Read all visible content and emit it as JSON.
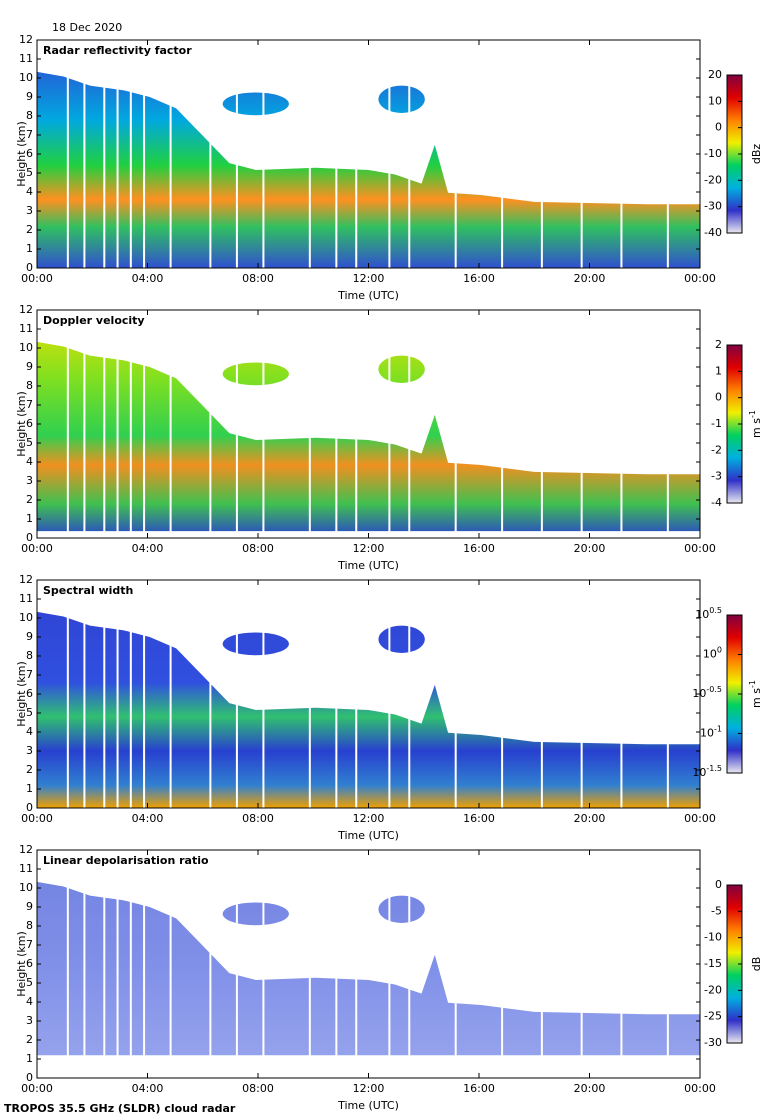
{
  "header": {
    "date": "18 Dec 2020"
  },
  "footer": {
    "text": "TROPOS 35.5 GHz (SLDR) cloud radar"
  },
  "chart_data": [
    {
      "type": "heatmap",
      "title": "Radar reflectivity factor",
      "xlabel": "Time (UTC)",
      "ylabel": "Height (km)",
      "xlim": [
        0,
        24
      ],
      "xticks": [
        {
          "value": 0,
          "label": "00:00"
        },
        {
          "value": 4,
          "label": "04:00"
        },
        {
          "value": 8,
          "label": "08:00"
        },
        {
          "value": 12,
          "label": "12:00"
        },
        {
          "value": 16,
          "label": "16:00"
        },
        {
          "value": 20,
          "label": "20:00"
        },
        {
          "value": 24,
          "label": "00:00"
        }
      ],
      "ylim": [
        0,
        12
      ],
      "yticks": [
        0,
        1,
        2,
        3,
        4,
        5,
        6,
        7,
        8,
        9,
        10,
        11,
        12
      ],
      "colorbar_label": "dBz",
      "clim": [
        -40,
        20
      ],
      "cticks": [
        -40,
        -30,
        -20,
        -10,
        0,
        10,
        20
      ],
      "colormap": [
        "#e8e8f0",
        "#3030c8",
        "#00b0e0",
        "#00d060",
        "#f0f000",
        "#ff8000",
        "#e00000",
        "#800040"
      ]
    },
    {
      "type": "heatmap",
      "title": "Doppler velocity",
      "xlabel": "Time (UTC)",
      "ylabel": "Height (km)",
      "xlim": [
        0,
        24
      ],
      "xticks": [
        {
          "value": 0,
          "label": "00:00"
        },
        {
          "value": 4,
          "label": "04:00"
        },
        {
          "value": 8,
          "label": "08:00"
        },
        {
          "value": 12,
          "label": "12:00"
        },
        {
          "value": 16,
          "label": "16:00"
        },
        {
          "value": 20,
          "label": "20:00"
        },
        {
          "value": 24,
          "label": "00:00"
        }
      ],
      "ylim": [
        0,
        12
      ],
      "yticks": [
        0,
        1,
        2,
        3,
        4,
        5,
        6,
        7,
        8,
        9,
        10,
        11,
        12
      ],
      "colorbar_label": "m s^-1",
      "clim": [
        -4,
        2
      ],
      "cticks": [
        -4,
        -3,
        -2,
        -1,
        0,
        1,
        2
      ],
      "colormap": [
        "#e8e8f0",
        "#3030c8",
        "#00b0e0",
        "#00d060",
        "#f0f000",
        "#ff8000",
        "#e00000",
        "#800040"
      ]
    },
    {
      "type": "heatmap",
      "title": "Spectral width",
      "xlabel": "Time (UTC)",
      "ylabel": "Height (km)",
      "xlim": [
        0,
        24
      ],
      "xticks": [
        {
          "value": 0,
          "label": "00:00"
        },
        {
          "value": 4,
          "label": "04:00"
        },
        {
          "value": 8,
          "label": "08:00"
        },
        {
          "value": 12,
          "label": "12:00"
        },
        {
          "value": 16,
          "label": "16:00"
        },
        {
          "value": 20,
          "label": "20:00"
        },
        {
          "value": 24,
          "label": "00:00"
        }
      ],
      "ylim": [
        0,
        12
      ],
      "yticks": [
        0,
        1,
        2,
        3,
        4,
        5,
        6,
        7,
        8,
        9,
        10,
        11,
        12
      ],
      "colorbar_label": "m s^-1",
      "log_scale": true,
      "clim": [
        -1.5,
        0.5
      ],
      "cticks": [
        {
          "value": -1.5,
          "label": "10^-1.5"
        },
        {
          "value": -1,
          "label": "10^-1"
        },
        {
          "value": -0.5,
          "label": "10^-0.5"
        },
        {
          "value": 0,
          "label": "10^0"
        },
        {
          "value": 0.5,
          "label": "10^0.5"
        }
      ],
      "colormap": [
        "#e8e8f0",
        "#3030c8",
        "#00b0e0",
        "#00d060",
        "#f0f000",
        "#ff8000",
        "#e00000",
        "#800040"
      ]
    },
    {
      "type": "heatmap",
      "title": "Linear depolarisation ratio",
      "xlabel": "Time (UTC)",
      "ylabel": "Height (km)",
      "xlim": [
        0,
        24
      ],
      "xticks": [
        {
          "value": 0,
          "label": "00:00"
        },
        {
          "value": 4,
          "label": "04:00"
        },
        {
          "value": 8,
          "label": "08:00"
        },
        {
          "value": 12,
          "label": "12:00"
        },
        {
          "value": 16,
          "label": "16:00"
        },
        {
          "value": 20,
          "label": "20:00"
        },
        {
          "value": 24,
          "label": "00:00"
        }
      ],
      "ylim": [
        0,
        12
      ],
      "yticks": [
        0,
        1,
        2,
        3,
        4,
        5,
        6,
        7,
        8,
        9,
        10,
        11,
        12
      ],
      "colorbar_label": "dB",
      "clim": [
        -30,
        0
      ],
      "cticks": [
        -30,
        -25,
        -20,
        -15,
        -10,
        -5,
        0
      ],
      "colormap": [
        "#e8e8f0",
        "#3030c8",
        "#00b0e0",
        "#00d060",
        "#f0f000",
        "#ff8000",
        "#e00000",
        "#800040"
      ]
    }
  ]
}
